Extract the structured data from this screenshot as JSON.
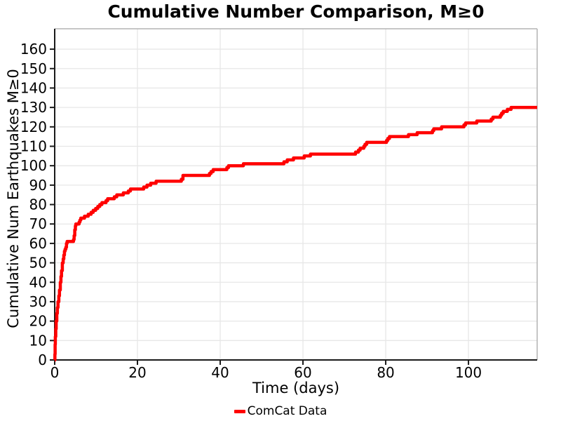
{
  "chart_data": {
    "type": "line",
    "step": true,
    "title": "Cumulative Number Comparison, M≥0",
    "xlabel": "Time (days)",
    "ylabel": "Cumulative Num Earthquakes M≥0",
    "xlim": [
      0,
      116.6
    ],
    "ylim": [
      0,
      170.5
    ],
    "x_ticks": [
      0,
      20,
      40,
      60,
      80,
      100
    ],
    "y_ticks": [
      0,
      10,
      20,
      30,
      40,
      50,
      60,
      70,
      80,
      90,
      100,
      110,
      120,
      130,
      140,
      150,
      160
    ],
    "grid": true,
    "legend_position": "bottom-center",
    "colors": {
      "line": "#ff0000",
      "grid": "#e7e7e7",
      "spine_main": "#1a1a1a",
      "spine_secondary": "#b3b3b3",
      "text": "#000000"
    },
    "series": [
      {
        "name": "ComCat Data",
        "color": "#ff0000",
        "points": [
          [
            0,
            0
          ],
          [
            0.05,
            3
          ],
          [
            0.1,
            8
          ],
          [
            0.15,
            12
          ],
          [
            0.25,
            16
          ],
          [
            0.35,
            20
          ],
          [
            0.5,
            24
          ],
          [
            0.65,
            27
          ],
          [
            0.8,
            30
          ],
          [
            1.0,
            33
          ],
          [
            1.15,
            36
          ],
          [
            1.35,
            40
          ],
          [
            1.5,
            43
          ],
          [
            1.65,
            46
          ],
          [
            1.85,
            50
          ],
          [
            2.05,
            52
          ],
          [
            2.2,
            54
          ],
          [
            2.35,
            56
          ],
          [
            2.5,
            57
          ],
          [
            2.7,
            58
          ],
          [
            2.85,
            60
          ],
          [
            3.0,
            61
          ],
          [
            4.55,
            62
          ],
          [
            4.7,
            64
          ],
          [
            4.85,
            67
          ],
          [
            5.0,
            69
          ],
          [
            5.1,
            70
          ],
          [
            5.9,
            71
          ],
          [
            6.1,
            72
          ],
          [
            6.3,
            73
          ],
          [
            7.2,
            74
          ],
          [
            8.1,
            75
          ],
          [
            8.8,
            76
          ],
          [
            9.3,
            77
          ],
          [
            9.9,
            78
          ],
          [
            10.4,
            79
          ],
          [
            10.9,
            80
          ],
          [
            11.4,
            81
          ],
          [
            12.4,
            82
          ],
          [
            12.8,
            83
          ],
          [
            14.4,
            84
          ],
          [
            15.0,
            85
          ],
          [
            16.6,
            86
          ],
          [
            17.8,
            87
          ],
          [
            18.3,
            88
          ],
          [
            21.5,
            89
          ],
          [
            22.3,
            90
          ],
          [
            23.2,
            91
          ],
          [
            24.5,
            92
          ],
          [
            30.6,
            93
          ],
          [
            31.0,
            95
          ],
          [
            37.4,
            96
          ],
          [
            37.8,
            97
          ],
          [
            38.3,
            98
          ],
          [
            41.6,
            99
          ],
          [
            42.0,
            100
          ],
          [
            45.6,
            101
          ],
          [
            55.4,
            102
          ],
          [
            56.2,
            103
          ],
          [
            57.7,
            104
          ],
          [
            60.3,
            105
          ],
          [
            61.8,
            106
          ],
          [
            72.7,
            107
          ],
          [
            73.4,
            108
          ],
          [
            73.8,
            109
          ],
          [
            74.7,
            110
          ],
          [
            75.0,
            111
          ],
          [
            75.4,
            112
          ],
          [
            80.2,
            113
          ],
          [
            80.5,
            114
          ],
          [
            80.9,
            115
          ],
          [
            85.5,
            116
          ],
          [
            87.6,
            117
          ],
          [
            91.3,
            118
          ],
          [
            91.6,
            119
          ],
          [
            93.5,
            120
          ],
          [
            98.9,
            121
          ],
          [
            99.3,
            122
          ],
          [
            102.0,
            123
          ],
          [
            105.5,
            124
          ],
          [
            105.9,
            125
          ],
          [
            107.7,
            126
          ],
          [
            108.0,
            127
          ],
          [
            108.4,
            128
          ],
          [
            109.4,
            129
          ],
          [
            110.3,
            130
          ],
          [
            116.6,
            130
          ]
        ]
      }
    ]
  }
}
